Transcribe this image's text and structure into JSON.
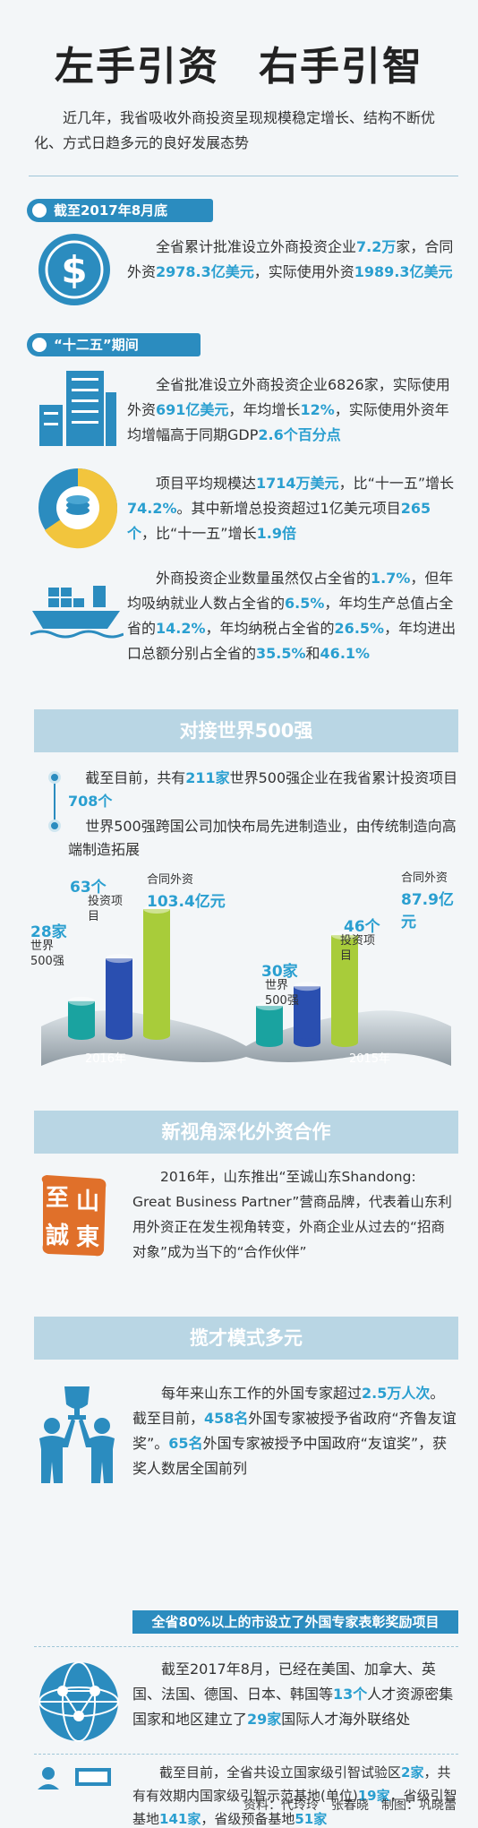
{
  "title": {
    "left": "左手引资",
    "right": "右手引智"
  },
  "intro": "近几年，我省吸收外商投资呈现规模稳定增长、结构不断优化、方式日趋多元的良好发展态势",
  "section1": {
    "label": "截至2017年8月底",
    "p1": "全省累计批准设立外商投资企业",
    "v1": "7.2万",
    "p2": "家，合同外资",
    "v2": "2978.3亿美元",
    "p3": "，实际使用外资",
    "v3": "1989.3亿美元"
  },
  "section2": {
    "label": "“十二五”期间",
    "a1": "全省批准设立外商投资企业6826家，实际使用外资",
    "av1": "691亿美元",
    "a2": "，年均增长",
    "av2": "12%",
    "a3": "，实际使用外资年均增幅高于同期GDP",
    "av3": "2.6个百分点",
    "b1": "项目平均规模达",
    "bv1": "1714万美元",
    "b2": "，比“十一五”增长",
    "bv2": "74.2%",
    "b3": "。其中新增总投资超过1亿美元项目",
    "bv3": "265个",
    "b4": "，比“十一五”增长",
    "bv4": "1.9倍",
    "c1": "外商投资企业数量虽然仅占全省的",
    "cv1": "1.7%",
    "c2": "，但年均吸纳就业人数占全省的",
    "cv2": "6.5%",
    "c3": "，年均生产总值占全省的",
    "cv3": "14.2%",
    "c4": "，年均纳税占全省的",
    "cv4": "26.5%",
    "c5": "，年均进出口总额分别占全省的",
    "cv5": "35.5%",
    "c6": "和",
    "cv6": "46.1%"
  },
  "section3": {
    "banner": "对接世界500强",
    "b1a": "截至目前，共有",
    "b1v1": "211家",
    "b1b": "世界500强企业在我省累计投资项目",
    "b1v2": "708个",
    "b2": "世界500强跨国公司加快布局先进制造业，由传统制造向高端制造拓展"
  },
  "chart_data": {
    "type": "bar",
    "categories": [
      "2016年",
      "2015年"
    ],
    "series": [
      {
        "name": "世界500强",
        "values": [
          28,
          30
        ],
        "unit": "家"
      },
      {
        "name": "投资项目",
        "values": [
          63,
          46
        ],
        "unit": "个"
      },
      {
        "name": "合同外资",
        "values": [
          103.4,
          87.9
        ],
        "unit": "亿元"
      }
    ],
    "labels": {
      "y2016": "2016年",
      "y2015": "2015年",
      "n28": "28家",
      "l28": "世界500强",
      "n63": "63个",
      "l63": "投资项目",
      "l1034": "合同外资",
      "n1034": "103.4亿元",
      "n30": "30家",
      "l30": "世界500强",
      "n46": "46个",
      "l46": "投资项目",
      "l879": "合同外资",
      "n879": "87.9亿元"
    },
    "colors": [
      "#1aa3a0",
      "#2a4fb0",
      "#a8cc3a"
    ]
  },
  "section4": {
    "banner": "新视角深化外资合作",
    "text": "2016年，山东推出“至诚山东Shandong: Great Business Partner”营商品牌，代表着山东利用外资正在发生视角转变，外商企业从过去的“招商对象”成为当下的“合作伙伴”",
    "seal": "至诚山東"
  },
  "section5": {
    "banner": "揽才模式多元",
    "p1a": "每年来山东工作的外国专家超过",
    "p1v1": "2.5万人次",
    "p1b": "。截至目前，",
    "p1v2": "458名",
    "p1c": "外国专家被授予省政府“齐鲁友谊奖”。",
    "p1v3": "65名",
    "p1d": "外国专家被授予中国政府“友谊奖”，获奖人数居全国前列",
    "highlight": "全省80%以上的市设立了外国专家表彰奖励项目",
    "p2a": "截至2017年8月，已经在美国、加拿大、英国、法国、德国、日本、韩国等",
    "p2v1": "13个",
    "p2b": "人才资源密集国家和地区建立了",
    "p2v2": "29家",
    "p2c": "国际人才海外联络处",
    "p3a": "截至目前，全省共设立国家级引智试验区",
    "p3v1": "2家",
    "p3b": "，共有有效期内国家级引智示范基地(单位)",
    "p3v2": "19家",
    "p3c": "，省级引智基地",
    "p3v3": "141家",
    "p3d": "，省级预备基地",
    "p3v4": "51家"
  },
  "credits": "资料：代玲玲　张春晓　制图：巩晓蕾",
  "colors": {
    "accent": "#2b8cbf",
    "number": "#2a9fd0",
    "banner": "#b9d6e4",
    "seal": "#e0702a"
  }
}
